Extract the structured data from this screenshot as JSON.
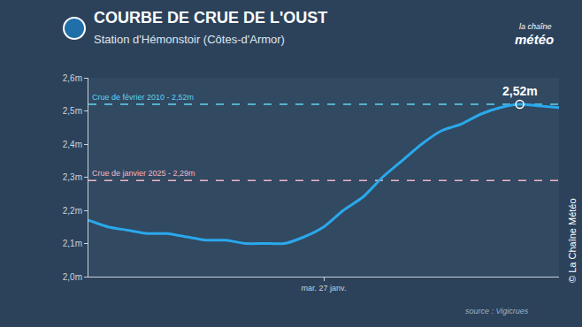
{
  "chart_data": {
    "type": "line",
    "title": "COURBE DE CRUE DE L'OUST",
    "subtitle": "Station d'Hémonstoir (Côtes-d'Armor)",
    "categories": [
      null,
      null,
      null,
      null,
      null,
      null,
      null,
      null,
      null,
      null,
      null,
      null,
      "mar. 27 janv.",
      null,
      null,
      null,
      null,
      null,
      null,
      null,
      null,
      null,
      null,
      null,
      null
    ],
    "values": [
      2.17,
      2.15,
      2.14,
      2.13,
      2.13,
      2.12,
      2.11,
      2.11,
      2.1,
      2.1,
      2.1,
      2.12,
      2.15,
      2.2,
      2.24,
      2.3,
      2.35,
      2.4,
      2.44,
      2.46,
      2.49,
      2.51,
      2.52,
      2.515,
      2.51
    ],
    "color": "#2aa8ec",
    "ylim": [
      2.0,
      2.6
    ],
    "yticks": [
      {
        "value": 2.0,
        "label": "2,0m"
      },
      {
        "value": 2.1,
        "label": "2,1m"
      },
      {
        "value": 2.2,
        "label": "2,2m"
      },
      {
        "value": 2.3,
        "label": "2,3m"
      },
      {
        "value": 2.4,
        "label": "2,4m"
      },
      {
        "value": 2.5,
        "label": "2,5m"
      },
      {
        "value": 2.6,
        "label": "2,6m"
      }
    ],
    "grid": false,
    "reference_lines": [
      {
        "value": 2.52,
        "label": "Crue de février 2010 - 2,52m",
        "color": "#5fd3f3"
      },
      {
        "value": 2.29,
        "label": "Crue de janvier 2025 - 2,29m",
        "color": "#f4b6c2"
      }
    ],
    "annotations": [
      {
        "x": 22,
        "y": 2.52,
        "text": "2,52m"
      }
    ],
    "source": "source : Vigicrues",
    "copyright": "© La Chaîne Météo",
    "logo": [
      "la chaîne",
      "météo"
    ]
  }
}
